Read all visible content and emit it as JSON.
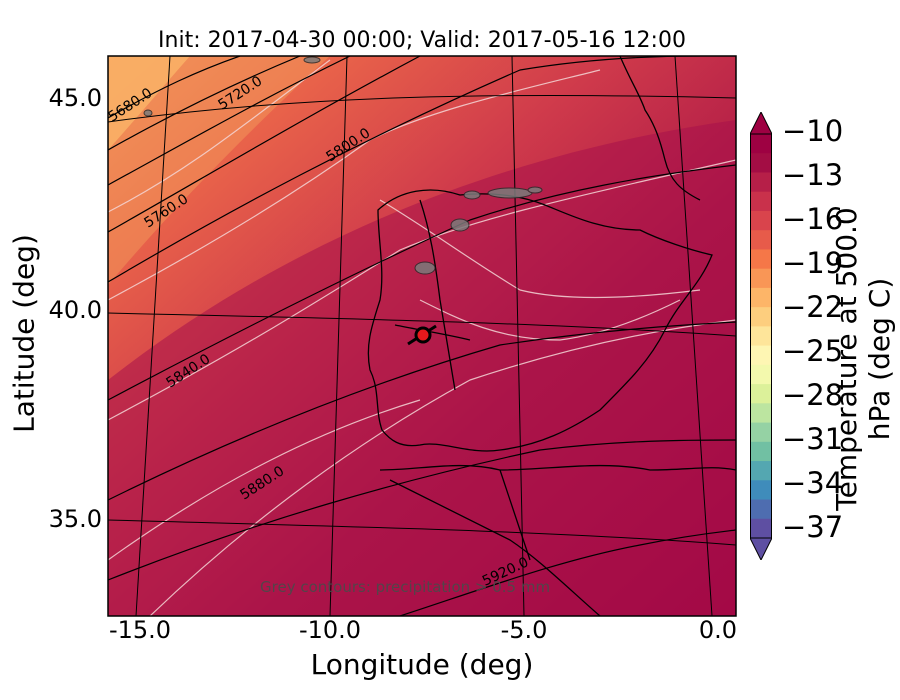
{
  "title": "Init: 2017-04-30 00:00; Valid: 2017-05-16 12:00",
  "axes": {
    "xlabel": "Longitude (deg)",
    "ylabel": "Latitude (deg)",
    "xticks": [
      "-15.0",
      "-10.0",
      "-5.0",
      "0.0"
    ],
    "yticks": [
      "45.0",
      "40.0",
      "35.0"
    ]
  },
  "colorbar": {
    "label": "Temperature at 500.0 hPa (deg C)",
    "ticks": [
      "−10",
      "−13",
      "−16",
      "−19",
      "−22",
      "−25",
      "−28",
      "−31",
      "−34",
      "−37"
    ],
    "palette": [
      "#5e4fa2",
      "#4e6db0",
      "#3f8cbb",
      "#54a7b1",
      "#71c0a3",
      "#95d2a4",
      "#bce5a0",
      "#dcf19a",
      "#f3f9ad",
      "#fef6b3",
      "#fee59a",
      "#fdce7e",
      "#fdb568",
      "#f99656",
      "#f57748",
      "#e75b4a",
      "#d9444c",
      "#c9314b",
      "#b61f48",
      "#a30d44",
      "#9e0142"
    ]
  },
  "contours": [
    {
      "label": "5680.0"
    },
    {
      "label": "5720.0"
    },
    {
      "label": "5760.0"
    },
    {
      "label": "5800.0"
    },
    {
      "label": "5840.0"
    },
    {
      "label": "5880.0"
    },
    {
      "label": "5920.0"
    }
  ],
  "footnote": "Grey contours: precipitation > 0.5 mm",
  "marker": {
    "name": "station"
  }
}
